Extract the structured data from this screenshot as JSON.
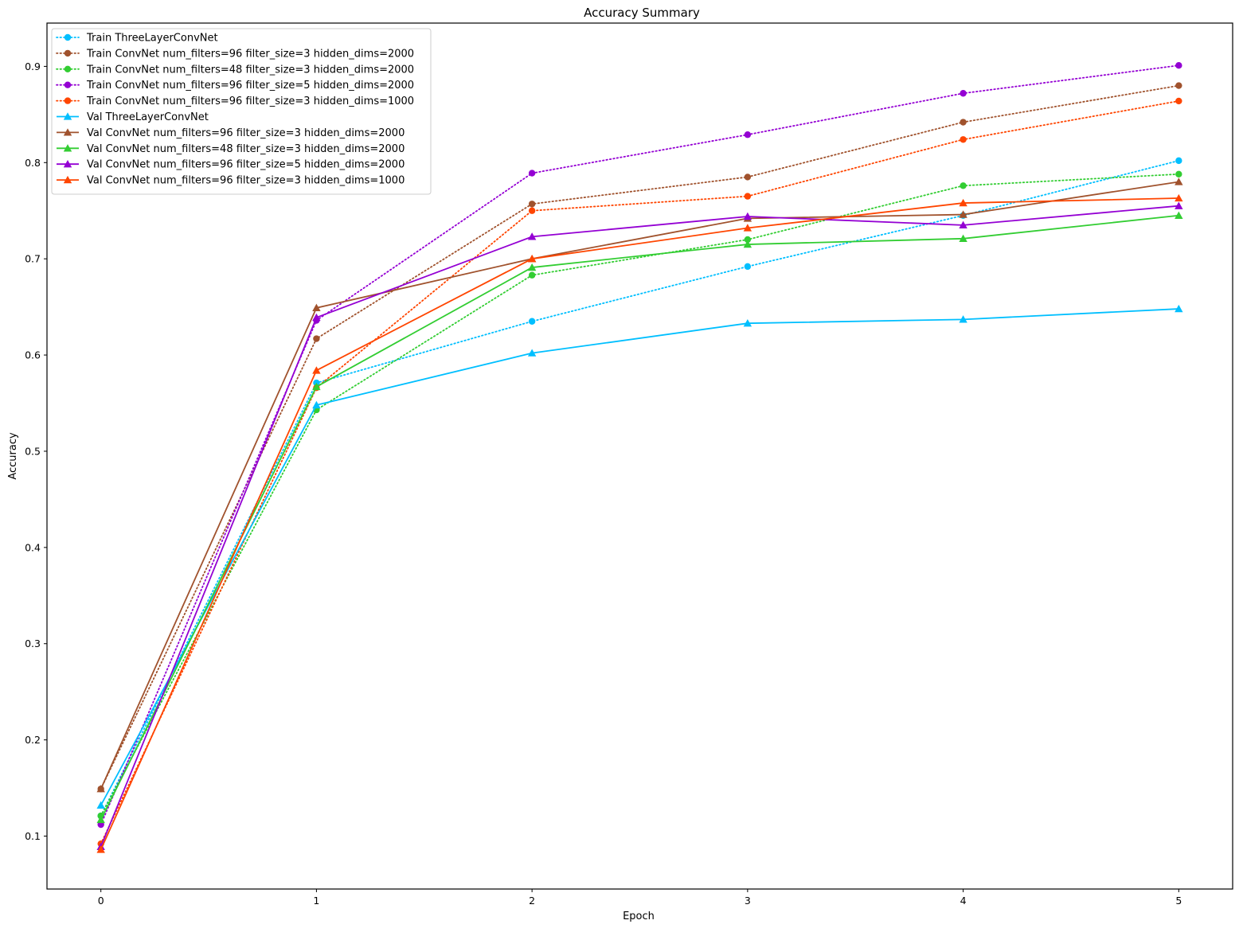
{
  "chart_data": {
    "type": "line",
    "title": "Accuracy Summary",
    "xlabel": "Epoch",
    "ylabel": "Accuracy",
    "xlim": [
      -0.25,
      5.25
    ],
    "ylim": [
      0.045,
      0.945
    ],
    "xticks": [
      0,
      1,
      2,
      3,
      4,
      5
    ],
    "xtick_labels": [
      "0",
      "1",
      "2",
      "3",
      "4",
      "5"
    ],
    "yticks": [
      0.1,
      0.2,
      0.3,
      0.4,
      0.5,
      0.6,
      0.7,
      0.8,
      0.9
    ],
    "ytick_labels": [
      "0.1",
      "0.2",
      "0.3",
      "0.4",
      "0.5",
      "0.6",
      "0.7",
      "0.8",
      "0.9"
    ],
    "grid": false,
    "legend_position": "upper-left",
    "x": [
      0,
      1,
      2,
      3,
      4,
      5
    ],
    "series": [
      {
        "name": "Train ThreeLayerConvNet",
        "color": "#00bfff",
        "line": "dotted",
        "marker": "circle",
        "values": [
          0.121,
          0.571,
          0.635,
          0.692,
          0.745,
          0.802
        ]
      },
      {
        "name": "Train ConvNet num_filters=96 filter_size=3 hidden_dims=2000",
        "color": "#a0522d",
        "line": "dotted",
        "marker": "circle",
        "values": [
          0.149,
          0.617,
          0.757,
          0.785,
          0.842,
          0.88
        ]
      },
      {
        "name": "Train ConvNet num_filters=48 filter_size=3 hidden_dims=2000",
        "color": "#32cd32",
        "line": "dotted",
        "marker": "circle",
        "values": [
          0.121,
          0.543,
          0.683,
          0.72,
          0.776,
          0.788
        ]
      },
      {
        "name": "Train ConvNet num_filters=96 filter_size=5 hidden_dims=2000",
        "color": "#9400d3",
        "line": "dotted",
        "marker": "circle",
        "values": [
          0.112,
          0.636,
          0.789,
          0.829,
          0.872,
          0.901
        ]
      },
      {
        "name": "Train ConvNet num_filters=96 filter_size=3 hidden_dims=1000",
        "color": "#ff4500",
        "line": "dotted",
        "marker": "circle",
        "values": [
          0.092,
          0.566,
          0.75,
          0.765,
          0.824,
          0.864
        ]
      },
      {
        "name": "Val ThreeLayerConvNet",
        "color": "#00bfff",
        "line": "solid",
        "marker": "triangle",
        "values": [
          0.132,
          0.548,
          0.602,
          0.633,
          0.637,
          0.648
        ]
      },
      {
        "name": "Val ConvNet num_filters=96 filter_size=3 hidden_dims=2000",
        "color": "#a0522d",
        "line": "solid",
        "marker": "triangle",
        "values": [
          0.149,
          0.649,
          0.7,
          0.742,
          0.746,
          0.78
        ]
      },
      {
        "name": "Val ConvNet num_filters=48 filter_size=3 hidden_dims=2000",
        "color": "#32cd32",
        "line": "solid",
        "marker": "triangle",
        "values": [
          0.117,
          0.567,
          0.691,
          0.715,
          0.721,
          0.745
        ]
      },
      {
        "name": "Val ConvNet num_filters=96 filter_size=5 hidden_dims=2000",
        "color": "#9400d3",
        "line": "solid",
        "marker": "triangle",
        "values": [
          0.089,
          0.639,
          0.723,
          0.744,
          0.735,
          0.755
        ]
      },
      {
        "name": "Val ConvNet num_filters=96 filter_size=3 hidden_dims=1000",
        "color": "#ff4500",
        "line": "solid",
        "marker": "triangle",
        "values": [
          0.086,
          0.584,
          0.7,
          0.732,
          0.758,
          0.763
        ]
      }
    ]
  }
}
